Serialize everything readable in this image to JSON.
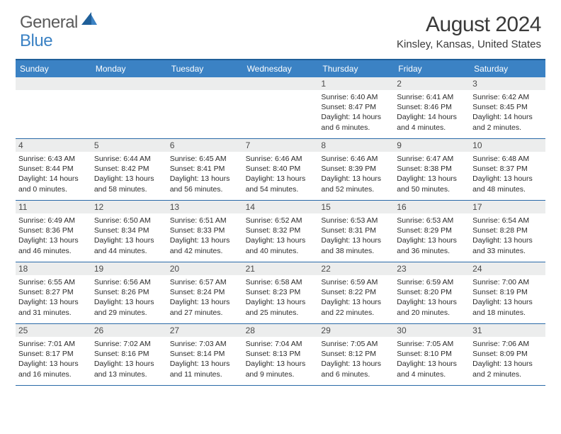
{
  "logo": {
    "general": "General",
    "blue": "Blue"
  },
  "title": "August 2024",
  "location": "Kinsley, Kansas, United States",
  "colors": {
    "accent": "#3b82c4",
    "header_border": "#1f5f99",
    "week_border": "#2a6aa8",
    "daynum_bg": "#eceded",
    "text": "#2b2b2b"
  },
  "dow": [
    "Sunday",
    "Monday",
    "Tuesday",
    "Wednesday",
    "Thursday",
    "Friday",
    "Saturday"
  ],
  "weeks": [
    [
      {
        "n": "",
        "l": []
      },
      {
        "n": "",
        "l": []
      },
      {
        "n": "",
        "l": []
      },
      {
        "n": "",
        "l": []
      },
      {
        "n": "1",
        "l": [
          "Sunrise: 6:40 AM",
          "Sunset: 8:47 PM",
          "Daylight: 14 hours",
          "and 6 minutes."
        ]
      },
      {
        "n": "2",
        "l": [
          "Sunrise: 6:41 AM",
          "Sunset: 8:46 PM",
          "Daylight: 14 hours",
          "and 4 minutes."
        ]
      },
      {
        "n": "3",
        "l": [
          "Sunrise: 6:42 AM",
          "Sunset: 8:45 PM",
          "Daylight: 14 hours",
          "and 2 minutes."
        ]
      }
    ],
    [
      {
        "n": "4",
        "l": [
          "Sunrise: 6:43 AM",
          "Sunset: 8:44 PM",
          "Daylight: 14 hours",
          "and 0 minutes."
        ]
      },
      {
        "n": "5",
        "l": [
          "Sunrise: 6:44 AM",
          "Sunset: 8:42 PM",
          "Daylight: 13 hours",
          "and 58 minutes."
        ]
      },
      {
        "n": "6",
        "l": [
          "Sunrise: 6:45 AM",
          "Sunset: 8:41 PM",
          "Daylight: 13 hours",
          "and 56 minutes."
        ]
      },
      {
        "n": "7",
        "l": [
          "Sunrise: 6:46 AM",
          "Sunset: 8:40 PM",
          "Daylight: 13 hours",
          "and 54 minutes."
        ]
      },
      {
        "n": "8",
        "l": [
          "Sunrise: 6:46 AM",
          "Sunset: 8:39 PM",
          "Daylight: 13 hours",
          "and 52 minutes."
        ]
      },
      {
        "n": "9",
        "l": [
          "Sunrise: 6:47 AM",
          "Sunset: 8:38 PM",
          "Daylight: 13 hours",
          "and 50 minutes."
        ]
      },
      {
        "n": "10",
        "l": [
          "Sunrise: 6:48 AM",
          "Sunset: 8:37 PM",
          "Daylight: 13 hours",
          "and 48 minutes."
        ]
      }
    ],
    [
      {
        "n": "11",
        "l": [
          "Sunrise: 6:49 AM",
          "Sunset: 8:36 PM",
          "Daylight: 13 hours",
          "and 46 minutes."
        ]
      },
      {
        "n": "12",
        "l": [
          "Sunrise: 6:50 AM",
          "Sunset: 8:34 PM",
          "Daylight: 13 hours",
          "and 44 minutes."
        ]
      },
      {
        "n": "13",
        "l": [
          "Sunrise: 6:51 AM",
          "Sunset: 8:33 PM",
          "Daylight: 13 hours",
          "and 42 minutes."
        ]
      },
      {
        "n": "14",
        "l": [
          "Sunrise: 6:52 AM",
          "Sunset: 8:32 PM",
          "Daylight: 13 hours",
          "and 40 minutes."
        ]
      },
      {
        "n": "15",
        "l": [
          "Sunrise: 6:53 AM",
          "Sunset: 8:31 PM",
          "Daylight: 13 hours",
          "and 38 minutes."
        ]
      },
      {
        "n": "16",
        "l": [
          "Sunrise: 6:53 AM",
          "Sunset: 8:29 PM",
          "Daylight: 13 hours",
          "and 36 minutes."
        ]
      },
      {
        "n": "17",
        "l": [
          "Sunrise: 6:54 AM",
          "Sunset: 8:28 PM",
          "Daylight: 13 hours",
          "and 33 minutes."
        ]
      }
    ],
    [
      {
        "n": "18",
        "l": [
          "Sunrise: 6:55 AM",
          "Sunset: 8:27 PM",
          "Daylight: 13 hours",
          "and 31 minutes."
        ]
      },
      {
        "n": "19",
        "l": [
          "Sunrise: 6:56 AM",
          "Sunset: 8:26 PM",
          "Daylight: 13 hours",
          "and 29 minutes."
        ]
      },
      {
        "n": "20",
        "l": [
          "Sunrise: 6:57 AM",
          "Sunset: 8:24 PM",
          "Daylight: 13 hours",
          "and 27 minutes."
        ]
      },
      {
        "n": "21",
        "l": [
          "Sunrise: 6:58 AM",
          "Sunset: 8:23 PM",
          "Daylight: 13 hours",
          "and 25 minutes."
        ]
      },
      {
        "n": "22",
        "l": [
          "Sunrise: 6:59 AM",
          "Sunset: 8:22 PM",
          "Daylight: 13 hours",
          "and 22 minutes."
        ]
      },
      {
        "n": "23",
        "l": [
          "Sunrise: 6:59 AM",
          "Sunset: 8:20 PM",
          "Daylight: 13 hours",
          "and 20 minutes."
        ]
      },
      {
        "n": "24",
        "l": [
          "Sunrise: 7:00 AM",
          "Sunset: 8:19 PM",
          "Daylight: 13 hours",
          "and 18 minutes."
        ]
      }
    ],
    [
      {
        "n": "25",
        "l": [
          "Sunrise: 7:01 AM",
          "Sunset: 8:17 PM",
          "Daylight: 13 hours",
          "and 16 minutes."
        ]
      },
      {
        "n": "26",
        "l": [
          "Sunrise: 7:02 AM",
          "Sunset: 8:16 PM",
          "Daylight: 13 hours",
          "and 13 minutes."
        ]
      },
      {
        "n": "27",
        "l": [
          "Sunrise: 7:03 AM",
          "Sunset: 8:14 PM",
          "Daylight: 13 hours",
          "and 11 minutes."
        ]
      },
      {
        "n": "28",
        "l": [
          "Sunrise: 7:04 AM",
          "Sunset: 8:13 PM",
          "Daylight: 13 hours",
          "and 9 minutes."
        ]
      },
      {
        "n": "29",
        "l": [
          "Sunrise: 7:05 AM",
          "Sunset: 8:12 PM",
          "Daylight: 13 hours",
          "and 6 minutes."
        ]
      },
      {
        "n": "30",
        "l": [
          "Sunrise: 7:05 AM",
          "Sunset: 8:10 PM",
          "Daylight: 13 hours",
          "and 4 minutes."
        ]
      },
      {
        "n": "31",
        "l": [
          "Sunrise: 7:06 AM",
          "Sunset: 8:09 PM",
          "Daylight: 13 hours",
          "and 2 minutes."
        ]
      }
    ]
  ]
}
